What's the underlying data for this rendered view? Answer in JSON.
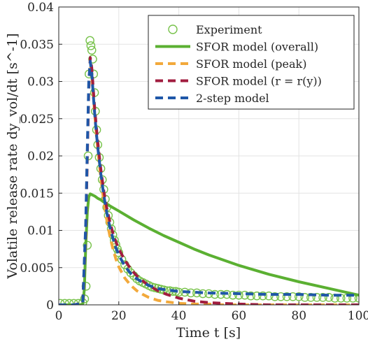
{
  "chart_data": {
    "type": "line",
    "title": "",
    "xlabel": "Time t [s]",
    "ylabel": "Volatile release rate dy_vol/dt [s^-1]",
    "xlim": [
      0,
      100
    ],
    "ylim": [
      0,
      0.04
    ],
    "x_ticks": [
      0,
      20,
      40,
      60,
      80,
      100
    ],
    "y_ticks": [
      0,
      0.005,
      0.01,
      0.015,
      0.02,
      0.025,
      0.03,
      0.035,
      0.04
    ],
    "x_tick_labels": [
      "0",
      "20",
      "40",
      "60",
      "80",
      "100"
    ],
    "y_tick_labels": [
      "0",
      "0.005",
      "0.01",
      "0.015",
      "0.02",
      "0.025",
      "0.03",
      "0.035",
      "0.04"
    ],
    "grid": true,
    "legend_position": "top-right",
    "series": [
      {
        "name": "Experiment",
        "style": "markers",
        "marker": "open-circle",
        "color": "#77c24a",
        "x": [
          0.5,
          2,
          3.5,
          5,
          6.5,
          8,
          8.6,
          9.1,
          9.5,
          9.8,
          10.1,
          10.4,
          10.7,
          11,
          11.3,
          11.6,
          11.9,
          12.2,
          12.6,
          13,
          13.5,
          14,
          14.5,
          15,
          15.5,
          16,
          16.5,
          17,
          17.5,
          18,
          18.5,
          19,
          19.5,
          20,
          21,
          22,
          23,
          24,
          25,
          26,
          27,
          28,
          29,
          30,
          31,
          32,
          33,
          34,
          35,
          36,
          37,
          38,
          39,
          40,
          42,
          44,
          46,
          48,
          50,
          52,
          54,
          56,
          58,
          60,
          62,
          64,
          66,
          68,
          70,
          72,
          74,
          76,
          78,
          80,
          82,
          84,
          86,
          88,
          90,
          92,
          94,
          96,
          98,
          100
        ],
        "y": [
          0.0002,
          0.0002,
          0.0002,
          0.0002,
          0.0002,
          0.0003,
          0.0008,
          0.0025,
          0.008,
          0.02,
          0.031,
          0.0355,
          0.0348,
          0.0342,
          0.033,
          0.031,
          0.0285,
          0.026,
          0.0235,
          0.0215,
          0.0198,
          0.0183,
          0.0168,
          0.0155,
          0.0142,
          0.0131,
          0.012,
          0.0111,
          0.0102,
          0.0094,
          0.0087,
          0.0081,
          0.0075,
          0.007,
          0.0061,
          0.0054,
          0.0048,
          0.0043,
          0.0039,
          0.0035,
          0.0032,
          0.003,
          0.0028,
          0.0026,
          0.0024,
          0.0023,
          0.0022,
          0.0021,
          0.002,
          0.0019,
          0.0019,
          0.0018,
          0.0018,
          0.0017,
          0.0017,
          0.0016,
          0.0016,
          0.0015,
          0.0015,
          0.0014,
          0.0014,
          0.0014,
          0.0013,
          0.0013,
          0.0013,
          0.0012,
          0.0012,
          0.0012,
          0.0012,
          0.0011,
          0.0011,
          0.0011,
          0.0011,
          0.0011,
          0.001,
          0.001,
          0.001,
          0.001,
          0.001,
          0.0009,
          0.0009,
          0.0009,
          0.0009,
          0.0009
        ]
      },
      {
        "name": "SFOR model (overall)",
        "style": "solid",
        "color": "#5bb032",
        "x": [
          0,
          5,
          7,
          8,
          8.5,
          9,
          9.5,
          10,
          10.5,
          11,
          11.5,
          12,
          13,
          14,
          15,
          17,
          20,
          25,
          30,
          35,
          40,
          45,
          50,
          60,
          70,
          80,
          90,
          100
        ],
        "y": [
          0,
          0,
          0,
          0.0001,
          0.002,
          0.008,
          0.0125,
          0.0145,
          0.0149,
          0.0148,
          0.0147,
          0.0146,
          0.0143,
          0.0141,
          0.0138,
          0.0133,
          0.0126,
          0.0114,
          0.0103,
          0.0093,
          0.0084,
          0.0075,
          0.0067,
          0.0053,
          0.0041,
          0.0031,
          0.0022,
          0.0013
        ]
      },
      {
        "name": "SFOR model (peak)",
        "style": "dashed",
        "color": "#f2a93b",
        "x": [
          0,
          5,
          8,
          9,
          9.5,
          10,
          10.5,
          11,
          11.5,
          12,
          12.5,
          13,
          14,
          15,
          16,
          17,
          18,
          19,
          20,
          22,
          24,
          26,
          28,
          30,
          33,
          36,
          40,
          45,
          50,
          55,
          60,
          100
        ],
        "y": [
          0,
          0,
          0.0002,
          0.01,
          0.02,
          0.029,
          0.0322,
          0.031,
          0.0282,
          0.0255,
          0.023,
          0.0208,
          0.017,
          0.0139,
          0.0114,
          0.0093,
          0.0076,
          0.0062,
          0.0051,
          0.0036,
          0.0026,
          0.0019,
          0.0014,
          0.001,
          0.0006,
          0.0004,
          0.0002,
          0.0001,
          0.0001,
          0,
          0,
          0
        ]
      },
      {
        "name": "SFOR model (r = r(y))",
        "style": "dashed",
        "color": "#a11d3f",
        "x": [
          0,
          5,
          8,
          9,
          9.5,
          10,
          10.5,
          11,
          11.5,
          12,
          12.5,
          13,
          14,
          15,
          16,
          17,
          18,
          19,
          20,
          22,
          24,
          26,
          28,
          30,
          33,
          36,
          40,
          45,
          50,
          55,
          60,
          70,
          100
        ],
        "y": [
          0,
          0,
          0.0002,
          0.01,
          0.02,
          0.029,
          0.0332,
          0.0318,
          0.029,
          0.0262,
          0.024,
          0.0218,
          0.0182,
          0.0153,
          0.013,
          0.0112,
          0.0097,
          0.0085,
          0.0075,
          0.006,
          0.0048,
          0.0039,
          0.0032,
          0.0026,
          0.0019,
          0.0014,
          0.0009,
          0.0005,
          0.0003,
          0.0002,
          0.0001,
          0,
          0
        ]
      },
      {
        "name": "2-step model",
        "style": "dashed",
        "color": "#1f57a8",
        "x": [
          0,
          5,
          8,
          9,
          9.5,
          10,
          10.5,
          11,
          11.5,
          12,
          12.5,
          13,
          14,
          15,
          16,
          17,
          18,
          19,
          20,
          22,
          24,
          26,
          28,
          30,
          33,
          36,
          40,
          45,
          50,
          60,
          70,
          80,
          90,
          100
        ],
        "y": [
          0,
          0,
          0.0002,
          0.011,
          0.021,
          0.03,
          0.0327,
          0.031,
          0.0282,
          0.0255,
          0.0232,
          0.0211,
          0.0176,
          0.0147,
          0.0124,
          0.0105,
          0.009,
          0.0077,
          0.0067,
          0.0052,
          0.0042,
          0.0035,
          0.003,
          0.0026,
          0.0022,
          0.002,
          0.0018,
          0.0017,
          0.0016,
          0.0015,
          0.0014,
          0.0014,
          0.0013,
          0.0013
        ]
      }
    ]
  }
}
